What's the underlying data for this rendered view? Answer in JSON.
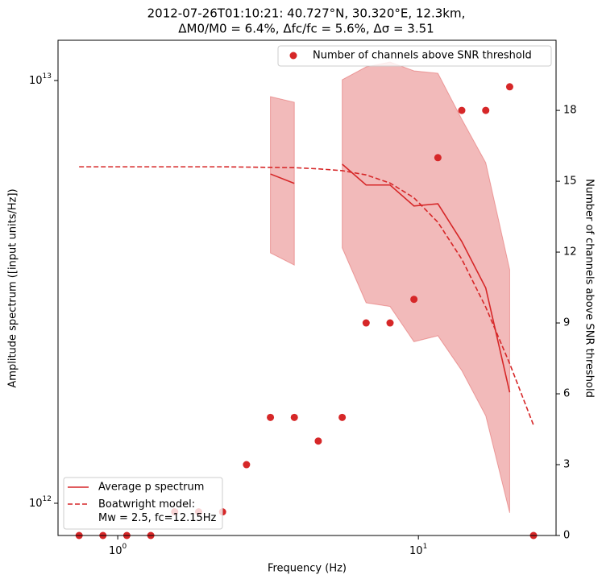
{
  "chart_data": {
    "type": "line",
    "title": "2012-07-26T01:10:21: 40.727°N, 30.320°E, 12.3km,",
    "subtitle": "ΔM0/M0 = 6.4%, Δfc/fc = 5.6%, Δσ = 3.51",
    "x_label": "Frequency (Hz)",
    "y_label": "Amplitude spectrum ([input units/Hz])",
    "y2_label": "Number of channels above SNR threshold",
    "x_scale": "log",
    "y_scale": "log",
    "xlim": [
      0.633,
      28.7
    ],
    "ylim": [
      839000000000.0,
      12450000000000.0
    ],
    "y2lim": [
      0,
      20.97
    ],
    "xticks": [
      {
        "value": 1,
        "label": "10^0"
      },
      {
        "value": 10,
        "label": "10^1"
      }
    ],
    "yticks": [
      {
        "value": 1000000000000.0,
        "label": "10^12"
      },
      {
        "value": 10000000000000.0,
        "label": "10^13"
      }
    ],
    "y2ticks": [
      0,
      3,
      6,
      9,
      12,
      15,
      18
    ],
    "x": [
      0.744,
      0.893,
      1.072,
      1.288,
      1.547,
      1.858,
      2.232,
      2.681,
      3.22,
      3.867,
      4.645,
      5.579,
      6.701,
      8.049,
      9.665,
      11.61,
      13.94,
      16.75,
      20.12,
      24.15
    ],
    "series": [
      {
        "name": "Average p spectrum",
        "color": "#d62728",
        "style": "solid",
        "values": [
          null,
          null,
          null,
          null,
          null,
          null,
          null,
          null,
          6010000000000.0,
          5710000000000.0,
          null,
          6340000000000.0,
          5660000000000.0,
          5660000000000.0,
          5050000000000.0,
          5110000000000.0,
          4160000000000.0,
          3230000000000.0,
          1830000000000.0,
          null
        ]
      },
      {
        "name": "Boatwright model:\nMw = 2.5, fc=12.15Hz",
        "color": "#d62728",
        "style": "dashed",
        "values": [
          6250000000000.0,
          6250000000000.0,
          6250000000000.0,
          6250000000000.0,
          6250000000000.0,
          6250000000000.0,
          6250000000000.0,
          6240000000000.0,
          6230000000000.0,
          6220000000000.0,
          6180000000000.0,
          6120000000000.0,
          5980000000000.0,
          5720000000000.0,
          5280000000000.0,
          4620000000000.0,
          3780000000000.0,
          2910000000000.0,
          2140000000000.0,
          1530000000000.0
        ]
      },
      {
        "name": "Number of channels above SNR threshold",
        "color": "#d62728",
        "style": "marker",
        "axis": "y2",
        "values": [
          0,
          0,
          0,
          0,
          1,
          1,
          1,
          3,
          5,
          5,
          4,
          5,
          9,
          9,
          10,
          16,
          18,
          18,
          19,
          0
        ]
      }
    ],
    "band": {
      "color": "#d62728",
      "upper": [
        null,
        null,
        null,
        null,
        null,
        null,
        null,
        null,
        9160000000000.0,
        8880000000000.0,
        null,
        10040000000000.0,
        10770000000000.0,
        11060000000000.0,
        10540000000000.0,
        10400000000000.0,
        8100000000000.0,
        6390000000000.0,
        3570000000000.0,
        null
      ],
      "lower": [
        null,
        null,
        null,
        null,
        null,
        null,
        null,
        null,
        3910000000000.0,
        3660000000000.0,
        null,
        4020000000000.0,
        2980000000000.0,
        2920000000000.0,
        2410000000000.0,
        2490000000000.0,
        2060000000000.0,
        1610000000000.0,
        949000000000.0,
        null
      ]
    },
    "legend": [
      "lower left",
      "upper right"
    ]
  }
}
